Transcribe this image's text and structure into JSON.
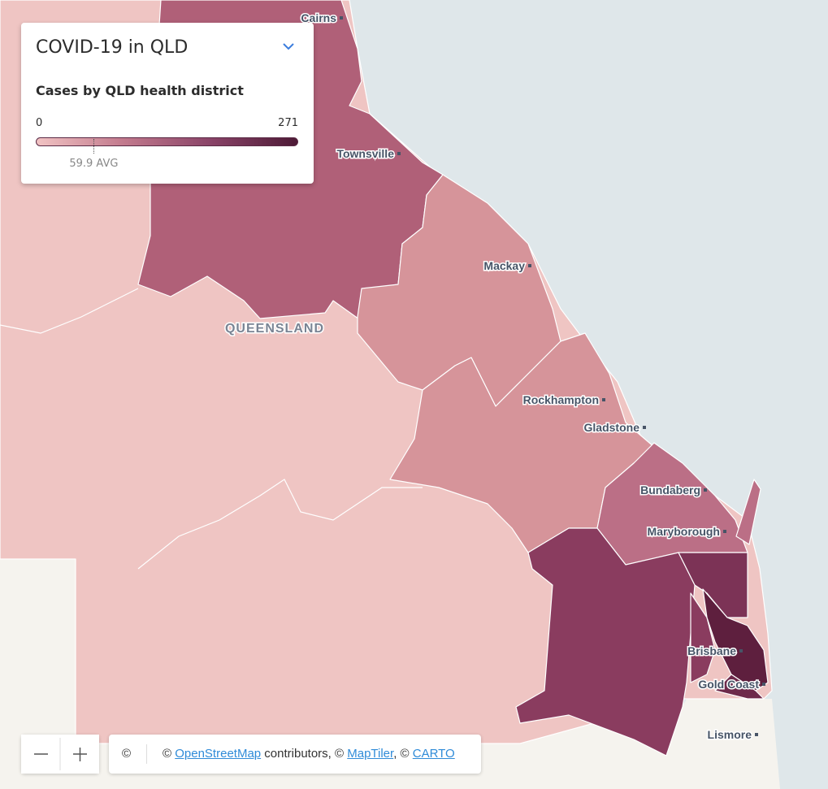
{
  "legend": {
    "title": "COVID-19 in QLD",
    "subtitle": "Cases by QLD health district",
    "min": 0,
    "max": 271,
    "avg": {
      "value": 59.9,
      "label": "59.9 AVG"
    }
  },
  "map": {
    "region_label": "QUEENSLAND",
    "cities": [
      "Cairns",
      "Townsville",
      "Mackay",
      "Rockhampton",
      "Gladstone",
      "Bundaberg",
      "Maryborough",
      "Brisbane",
      "Gold Coast",
      "Lismore"
    ]
  },
  "attribution": {
    "icon": "©",
    "prefix": "© ",
    "osm": "OpenStreetMap",
    "mid": " contributors, © ",
    "maptiler": "MapTiler",
    "sep": ", © ",
    "carto": "CARTO"
  }
}
